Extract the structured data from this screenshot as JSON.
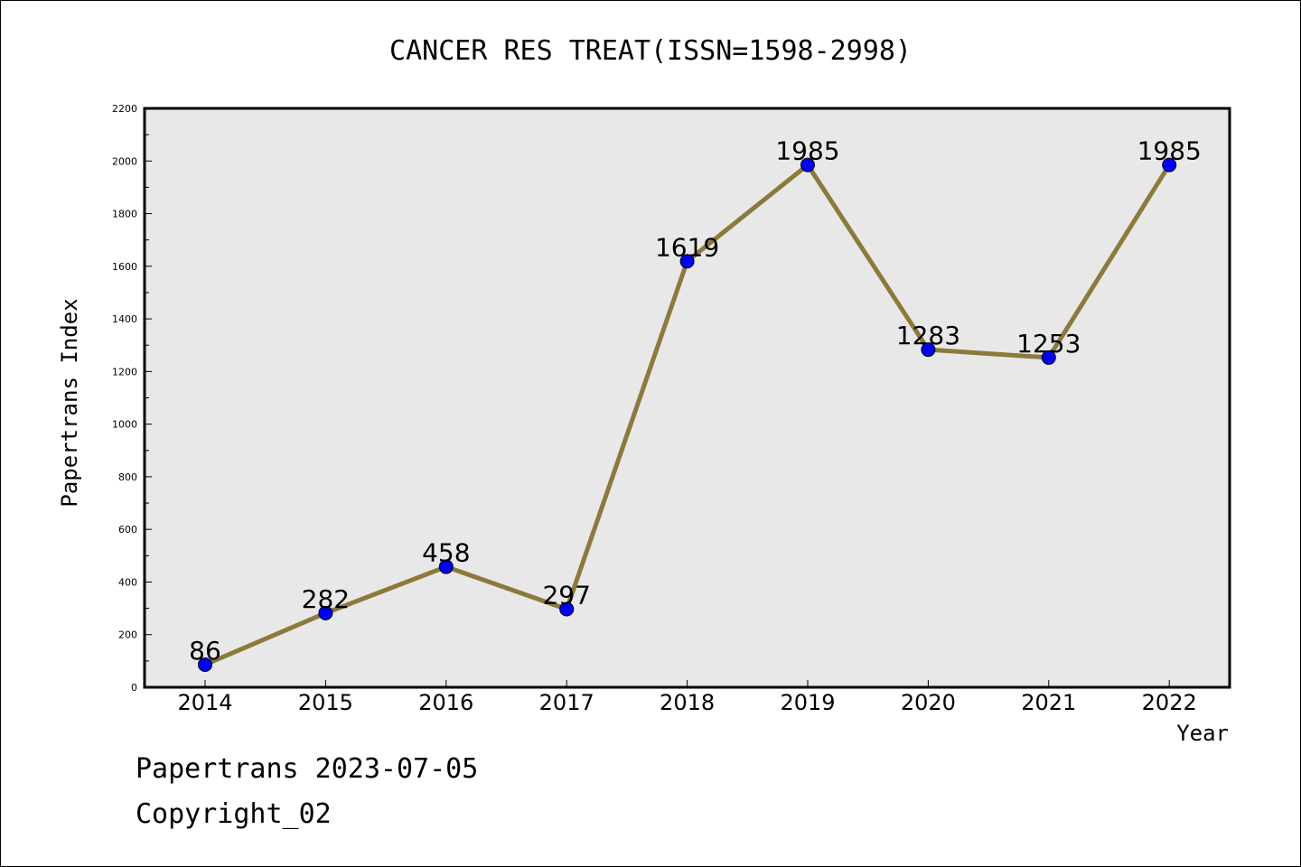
{
  "footer": {
    "line1": "Papertrans 2023-07-05",
    "line2": "Copyright_02"
  },
  "chart_data": {
    "type": "line",
    "title": "CANCER RES TREAT(ISSN=1598-2998)",
    "xlabel": "Year",
    "ylabel": "Papertrans Index",
    "categories": [
      "2014",
      "2015",
      "2016",
      "2017",
      "2018",
      "2019",
      "2020",
      "2021",
      "2022"
    ],
    "series": [
      {
        "values": [
          86,
          282,
          458,
          297,
          1619,
          1985,
          1283,
          1253,
          1985
        ]
      }
    ],
    "data_labels": [
      "86",
      "282",
      "458",
      "297",
      "1619",
      "1985",
      "1283",
      "1253",
      "1985"
    ],
    "ylim": [
      0,
      2200
    ],
    "yticks": [
      "0",
      "200",
      "400",
      "600",
      "800",
      "1000",
      "1200",
      "1400",
      "1600",
      "1800",
      "2000",
      "2200"
    ],
    "grid": false,
    "legend": "none",
    "colors": {
      "line": "#8c7a3a",
      "marker": "#0000ff",
      "plot_background": "#e8e8e8"
    }
  }
}
